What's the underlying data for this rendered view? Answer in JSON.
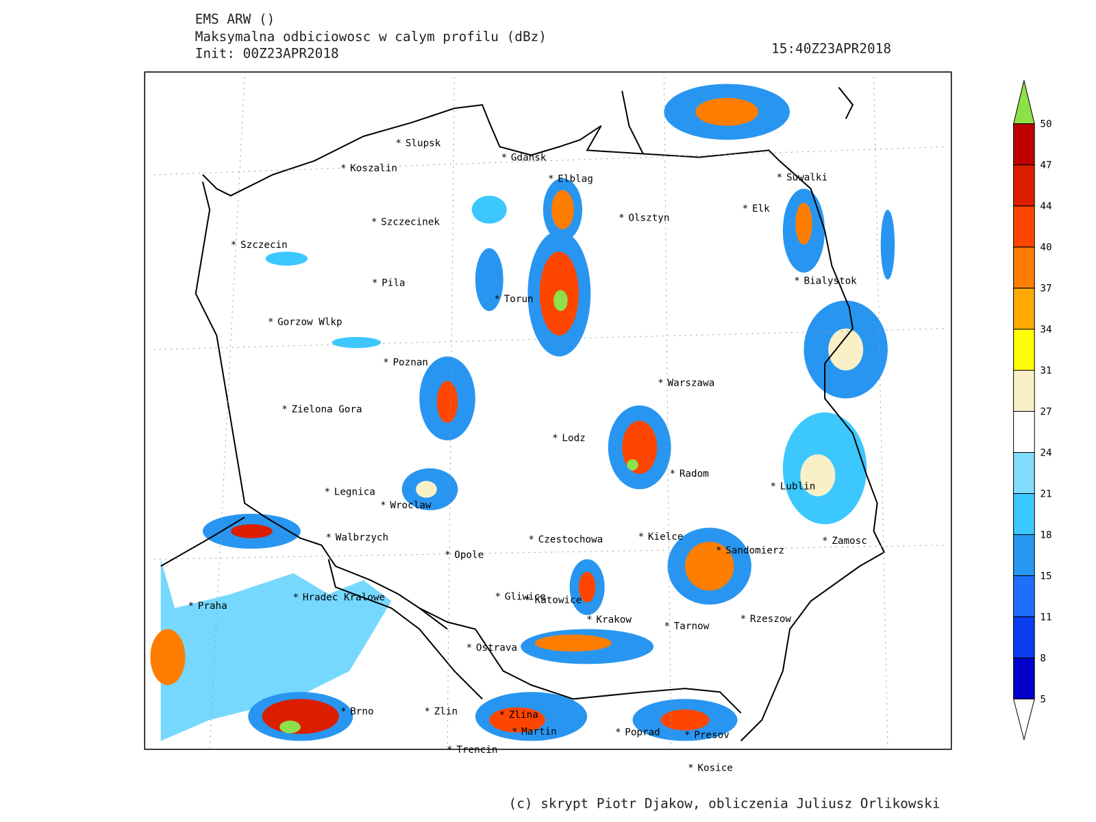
{
  "header": {
    "model": "EMS ARW ()",
    "field": "Maksymalna odbiciowosc w calym profilu (dBz)",
    "init": "Init: 00Z23APR2018",
    "valid_time": "15:40Z23APR2018"
  },
  "cities": [
    "Slupsk",
    "Koszalin",
    "Gdansk",
    "Elblag",
    "Szczecinek",
    "Olsztyn",
    "Szczecin",
    "Suwalki",
    "Elk",
    "Bialystok",
    "Pila",
    "Torun",
    "Gorzow Wlkp",
    "Poznan",
    "Warszawa",
    "Zielona Gora",
    "Lodz",
    "Radom",
    "Lublin",
    "Legnica",
    "Wroclaw",
    "Walbrzych",
    "Czestochowa",
    "Kielce",
    "Zamosc",
    "Sandomierz",
    "Opole",
    "Hradec Kralowe",
    "Praha",
    "Gliwice",
    "Katowice",
    "Krakow",
    "Tarnow",
    "Rzeszow",
    "Ostrava",
    "Brno",
    "Zlin",
    "Zlina",
    "Martin",
    "Poprad",
    "Presov",
    "Trencin",
    "Kosice"
  ],
  "colorbar": {
    "levels": [
      5,
      8,
      11,
      15,
      18,
      21,
      24,
      27,
      31,
      34,
      37,
      40,
      44,
      47,
      50
    ],
    "under_color": "#ffffff",
    "over_color": "#8ee04a",
    "colors": [
      "#0000c8",
      "#0a3cf0",
      "#1e6eff",
      "#2896f0",
      "#3cc8ff",
      "#82dcff",
      "#ffffff",
      "#faf0c8",
      "#ffff00",
      "#ffaa00",
      "#ff7d00",
      "#ff4600",
      "#dc1e00",
      "#be0000"
    ]
  },
  "footer": "(c) skrypt Piotr Djakow, obliczenia Juliusz Orlikowski"
}
